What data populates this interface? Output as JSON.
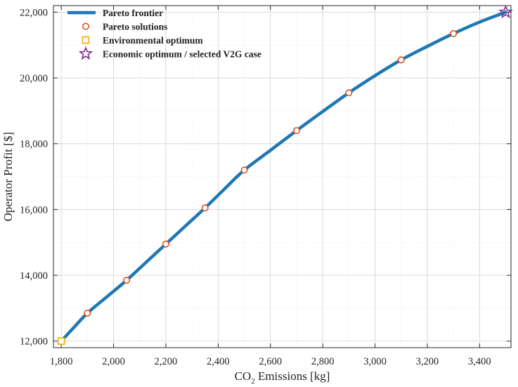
{
  "chart_data": {
    "type": "line",
    "xlabel": {
      "main": "CO",
      "sub": "2",
      "rest": " Emissions [kg]"
    },
    "ylabel": "Operator Profit [$]",
    "xlim": [
      1770,
      3520
    ],
    "ylim": [
      11800,
      22200
    ],
    "xticks": [
      1800,
      2000,
      2200,
      2400,
      2600,
      2800,
      3000,
      3200,
      3400
    ],
    "yticks": [
      12000,
      14000,
      16000,
      18000,
      20000,
      22000
    ],
    "xtick_labels": [
      "1,800",
      "2,000",
      "2,200",
      "2,400",
      "2,600",
      "2,800",
      "3,000",
      "3,200",
      "3,400"
    ],
    "ytick_labels": [
      "12,000",
      "14,000",
      "16,000",
      "18,000",
      "20,000",
      "22,000"
    ],
    "grid": true,
    "minor_grid": true,
    "legend_position": "top-left",
    "series": [
      {
        "name": "Pareto frontier",
        "kind": "line",
        "color": "#1f77b4",
        "x": [
          1800,
          1850,
          1900,
          1975,
          2050,
          2125,
          2200,
          2275,
          2350,
          2425,
          2500,
          2600,
          2700,
          2800,
          2900,
          3000,
          3100,
          3200,
          3300,
          3400,
          3500
        ],
        "y": [
          12000,
          12430,
          12850,
          13350,
          13850,
          14400,
          14950,
          15500,
          16050,
          16630,
          17200,
          17800,
          18400,
          18980,
          19550,
          20070,
          20550,
          20960,
          21350,
          21700,
          22000
        ]
      },
      {
        "name": "Pareto solutions",
        "kind": "circle",
        "color": "#d9541e",
        "x": [
          1900,
          2050,
          2200,
          2350,
          2500,
          2700,
          2900,
          3100,
          3300
        ],
        "y": [
          12850,
          13850,
          14950,
          16050,
          17200,
          18400,
          19550,
          20550,
          21350
        ]
      },
      {
        "name": "Environmental optimum",
        "kind": "square",
        "color": "#f2a900",
        "x": [
          1800
        ],
        "y": [
          12000
        ]
      },
      {
        "name": "Economic optimum / selected V2G case",
        "kind": "star",
        "color": "#7e2f8e",
        "x": [
          3500
        ],
        "y": [
          22000
        ]
      }
    ]
  }
}
